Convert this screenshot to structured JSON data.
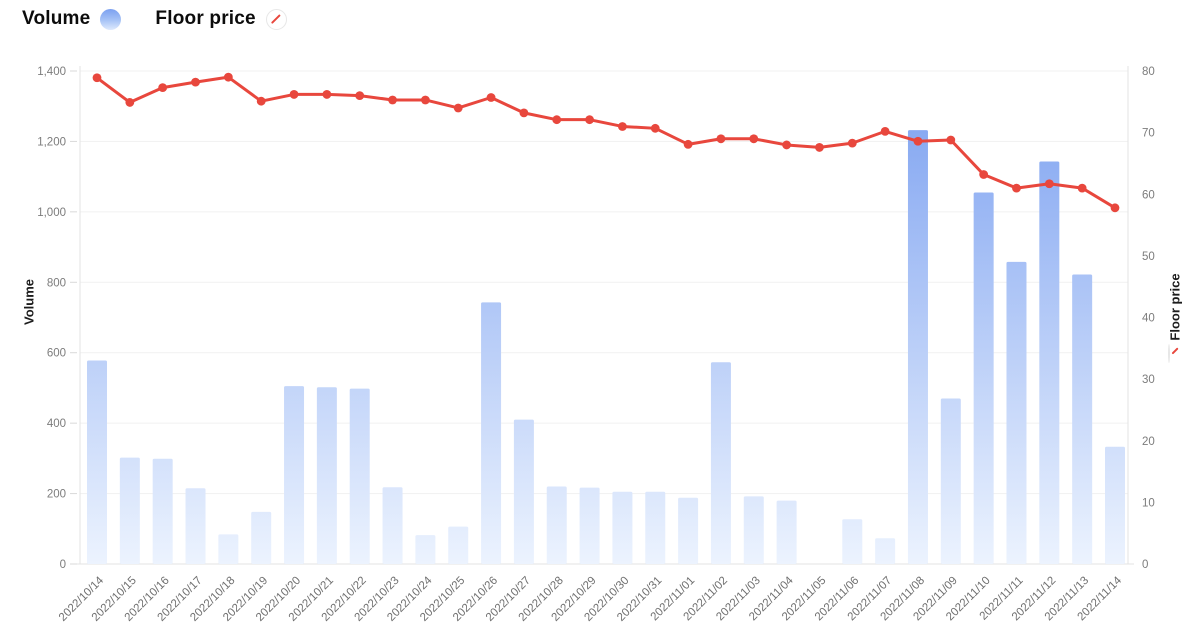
{
  "legend": {
    "volume_label": "Volume",
    "floor_price_label": "Floor price"
  },
  "axes": {
    "left_title": "Volume",
    "right_title": "Floor price",
    "left_ticks": [
      "0",
      "200",
      "400",
      "600",
      "800",
      "1,000",
      "1,200",
      "1,400"
    ],
    "right_ticks": [
      "0",
      "10",
      "20",
      "30",
      "40",
      "50",
      "60",
      "70",
      "80"
    ]
  },
  "colors": {
    "bar_top": "#7ba0f0",
    "bar_bottom": "#ecf3fe",
    "line": "#e8473d",
    "grid": "#f1f1f1",
    "axis_line": "#e3e3e3",
    "tick_text": "#7c7c7c",
    "x_label_text": "#6f6f6f"
  },
  "chart_data": {
    "type": "bar",
    "note": "combo chart: Volume bars on left axis, Floor price line on right axis",
    "categories": [
      "2022/10/14",
      "2022/10/15",
      "2022/10/16",
      "2022/10/17",
      "2022/10/18",
      "2022/10/19",
      "2022/10/20",
      "2022/10/21",
      "2022/10/22",
      "2022/10/23",
      "2022/10/24",
      "2022/10/25",
      "2022/10/26",
      "2022/10/27",
      "2022/10/28",
      "2022/10/29",
      "2022/10/30",
      "2022/10/31",
      "2022/11/01",
      "2022/11/02",
      "2022/11/03",
      "2022/11/04",
      "2022/11/05",
      "2022/11/06",
      "2022/11/07",
      "2022/11/08",
      "2022/11/09",
      "2022/11/10",
      "2022/11/11",
      "2022/11/12",
      "2022/11/13",
      "2022/11/14"
    ],
    "series": [
      {
        "name": "Volume",
        "type": "bar",
        "axis": "left",
        "values": [
          578,
          302,
          299,
          215,
          84,
          148,
          505,
          502,
          498,
          218,
          82,
          106,
          743,
          410,
          220,
          217,
          205,
          205,
          188,
          573,
          192,
          180,
          0,
          127,
          73,
          1232,
          470,
          1055,
          858,
          1143,
          822,
          333
        ]
      },
      {
        "name": "Floor price",
        "type": "line",
        "axis": "right",
        "values": [
          78.9,
          74.9,
          77.3,
          78.2,
          79.0,
          75.1,
          76.2,
          76.2,
          76.0,
          75.3,
          75.3,
          74.0,
          75.7,
          73.2,
          72.1,
          72.1,
          71.0,
          70.7,
          68.1,
          69.0,
          69.0,
          68.0,
          67.6,
          68.3,
          70.2,
          68.6,
          68.8,
          63.2,
          61.0,
          61.7,
          61.0,
          57.8
        ]
      }
    ],
    "left_axis": {
      "label": "Volume",
      "range": [
        0,
        1400
      ],
      "tick_step": 200
    },
    "right_axis": {
      "label": "Floor price",
      "range": [
        0,
        80
      ],
      "tick_step": 10
    },
    "grid": true,
    "legend_position": "top-left"
  }
}
